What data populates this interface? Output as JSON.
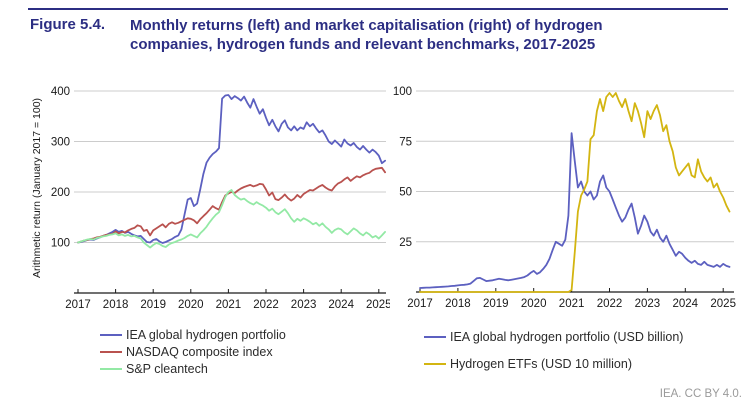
{
  "header": {
    "figure_label": "Figure 5.4.",
    "title": "Monthly returns (left) and market capitalisation (right) of hydrogen companies, hydrogen funds and relevant benchmarks, 2017-2025"
  },
  "footer": {
    "credit": "IEA. CC BY 4.0."
  },
  "colors": {
    "title_navy": "#2c2e83",
    "portfolio_blue": "#5c60c0",
    "nasdaq_red": "#b9524f",
    "cleantech_green": "#93e9a5",
    "etf_yellow": "#d3b511",
    "gridline": "#cccccc",
    "axis": "#1a1a1a",
    "text": "#1a1a1a",
    "credit_gray": "#9a9a9a"
  },
  "chart_data": [
    {
      "type": "line",
      "id": "left-monthly-returns",
      "ylabel": "Arithmetic return (January 2017 = 100)",
      "x_unit": "month",
      "x_range": [
        "2017-01",
        "2025-03"
      ],
      "x_tick_labels": [
        "2017",
        "2018",
        "2019",
        "2020",
        "2021",
        "2022",
        "2023",
        "2024",
        "2025"
      ],
      "y_ticks": [
        100,
        200,
        300,
        400
      ],
      "ylim": [
        0,
        410
      ],
      "grid": "horizontal",
      "legend_position": "below-left",
      "series": [
        {
          "name": "IEA global hydrogen portfolio",
          "color": "#5c60c0",
          "values": [
            100,
            101,
            103,
            105,
            106,
            105,
            108,
            110,
            113,
            115,
            118,
            121,
            125,
            121,
            123,
            119,
            121,
            117,
            114,
            112,
            113,
            107,
            101,
            100,
            105,
            107,
            102,
            99,
            101,
            104,
            107,
            111,
            114,
            126,
            155,
            185,
            188,
            172,
            177,
            205,
            235,
            258,
            268,
            275,
            280,
            287,
            385,
            391,
            392,
            384,
            390,
            386,
            381,
            389,
            377,
            367,
            384,
            369,
            355,
            364,
            347,
            332,
            343,
            330,
            320,
            335,
            342,
            328,
            322,
            330,
            322,
            328,
            325,
            338,
            330,
            335,
            326,
            318,
            322,
            312,
            300,
            295,
            302,
            296,
            290,
            304,
            296,
            292,
            297,
            289,
            284,
            291,
            284,
            278,
            284,
            279,
            272,
            257,
            262
          ]
        },
        {
          "name": "NASDAQ composite index",
          "color": "#b9524f",
          "values": [
            100,
            102,
            104,
            105,
            107,
            108,
            110,
            111,
            113,
            115,
            116,
            117,
            122,
            118,
            121,
            120,
            124,
            127,
            129,
            134,
            132,
            123,
            125,
            114,
            124,
            128,
            132,
            136,
            130,
            137,
            140,
            137,
            139,
            142,
            145,
            148,
            147,
            144,
            138,
            146,
            152,
            158,
            165,
            172,
            168,
            165,
            180,
            193,
            197,
            200,
            198,
            203,
            207,
            210,
            212,
            214,
            211,
            213,
            216,
            215,
            205,
            193,
            199,
            186,
            184,
            189,
            195,
            188,
            183,
            187,
            194,
            189,
            196,
            200,
            204,
            203,
            207,
            211,
            214,
            209,
            205,
            203,
            211,
            217,
            220,
            225,
            229,
            222,
            227,
            231,
            229,
            233,
            236,
            238,
            243,
            246,
            247,
            248,
            239
          ]
        },
        {
          "name": "S&P cleantech",
          "color": "#93e9a5",
          "values": [
            100,
            102,
            104,
            106,
            107,
            106,
            109,
            110,
            112,
            113,
            115,
            116,
            118,
            114,
            116,
            113,
            115,
            112,
            113,
            110,
            108,
            100,
            95,
            90,
            95,
            99,
            97,
            93,
            91,
            96,
            99,
            101,
            104,
            106,
            109,
            113,
            116,
            113,
            110,
            118,
            124,
            131,
            140,
            148,
            155,
            160,
            174,
            190,
            200,
            204,
            194,
            189,
            185,
            187,
            182,
            178,
            175,
            180,
            176,
            173,
            169,
            163,
            167,
            160,
            156,
            161,
            166,
            158,
            148,
            141,
            147,
            143,
            148,
            145,
            141,
            136,
            139,
            133,
            138,
            131,
            126,
            119,
            125,
            128,
            126,
            120,
            116,
            122,
            128,
            124,
            118,
            114,
            120,
            116,
            110,
            113,
            108,
            114,
            121
          ]
        }
      ]
    },
    {
      "type": "line",
      "id": "right-market-capitalisation",
      "ylabel": "",
      "x_unit": "month",
      "x_range": [
        "2017-01",
        "2025-03"
      ],
      "x_tick_labels": [
        "2017",
        "2018",
        "2019",
        "2020",
        "2021",
        "2022",
        "2023",
        "2024",
        "2025"
      ],
      "y_ticks": [
        25,
        50,
        75,
        100
      ],
      "ylim": [
        0,
        103
      ],
      "grid": "horizontal",
      "legend_position": "below-left",
      "series": [
        {
          "name": "IEA global hydrogen portfolio (USD billion)",
          "color": "#5c60c0",
          "values": [
            2,
            2.1,
            2.2,
            2.2,
            2.3,
            2.4,
            2.5,
            2.6,
            2.7,
            2.8,
            3,
            3.1,
            3.3,
            3.5,
            3.6,
            3.8,
            4.2,
            5.5,
            6.8,
            7,
            6.2,
            5.4,
            5.6,
            5.8,
            6.2,
            6.6,
            6.3,
            6,
            5.8,
            6.1,
            6.4,
            6.7,
            7,
            7.4,
            8.2,
            9.5,
            10.5,
            9,
            9.8,
            11.5,
            13.5,
            16.5,
            21,
            25,
            24,
            23,
            26,
            38,
            79,
            65,
            52,
            55,
            50,
            48,
            50,
            46,
            48,
            55,
            58,
            52,
            50,
            46,
            42,
            38,
            35,
            37,
            41,
            44,
            37,
            29,
            33,
            38,
            35,
            30,
            28,
            31,
            27,
            25,
            28,
            24,
            21,
            18,
            20,
            19,
            17,
            15.5,
            14.5,
            15.5,
            14,
            13.5,
            15,
            13.5,
            13,
            12.5,
            13.5,
            12.5,
            14,
            13,
            12.5
          ]
        },
        {
          "name": "Hydrogen ETFs (USD 10 million)",
          "color": "#d3b511",
          "values": [
            0,
            0,
            0,
            0,
            0,
            0,
            0,
            0,
            0,
            0,
            0,
            0,
            0,
            0,
            0,
            0,
            0,
            0,
            0,
            0,
            0,
            0,
            0,
            0,
            0,
            0,
            0,
            0,
            0,
            0,
            0,
            0,
            0,
            0,
            0,
            0,
            0,
            0,
            0,
            0,
            0,
            0,
            0,
            0,
            0,
            0,
            0,
            0,
            1,
            20,
            40,
            48,
            51,
            55,
            76,
            78,
            90,
            96,
            90,
            97,
            99,
            97,
            99,
            95,
            92,
            96,
            90,
            85,
            94,
            90,
            84,
            77,
            90,
            86,
            90,
            93,
            88,
            80,
            83,
            75,
            70,
            62,
            58,
            60,
            62,
            64,
            58,
            57,
            66,
            60,
            57,
            55,
            57,
            52,
            54,
            50,
            47,
            43,
            40
          ]
        }
      ]
    }
  ]
}
